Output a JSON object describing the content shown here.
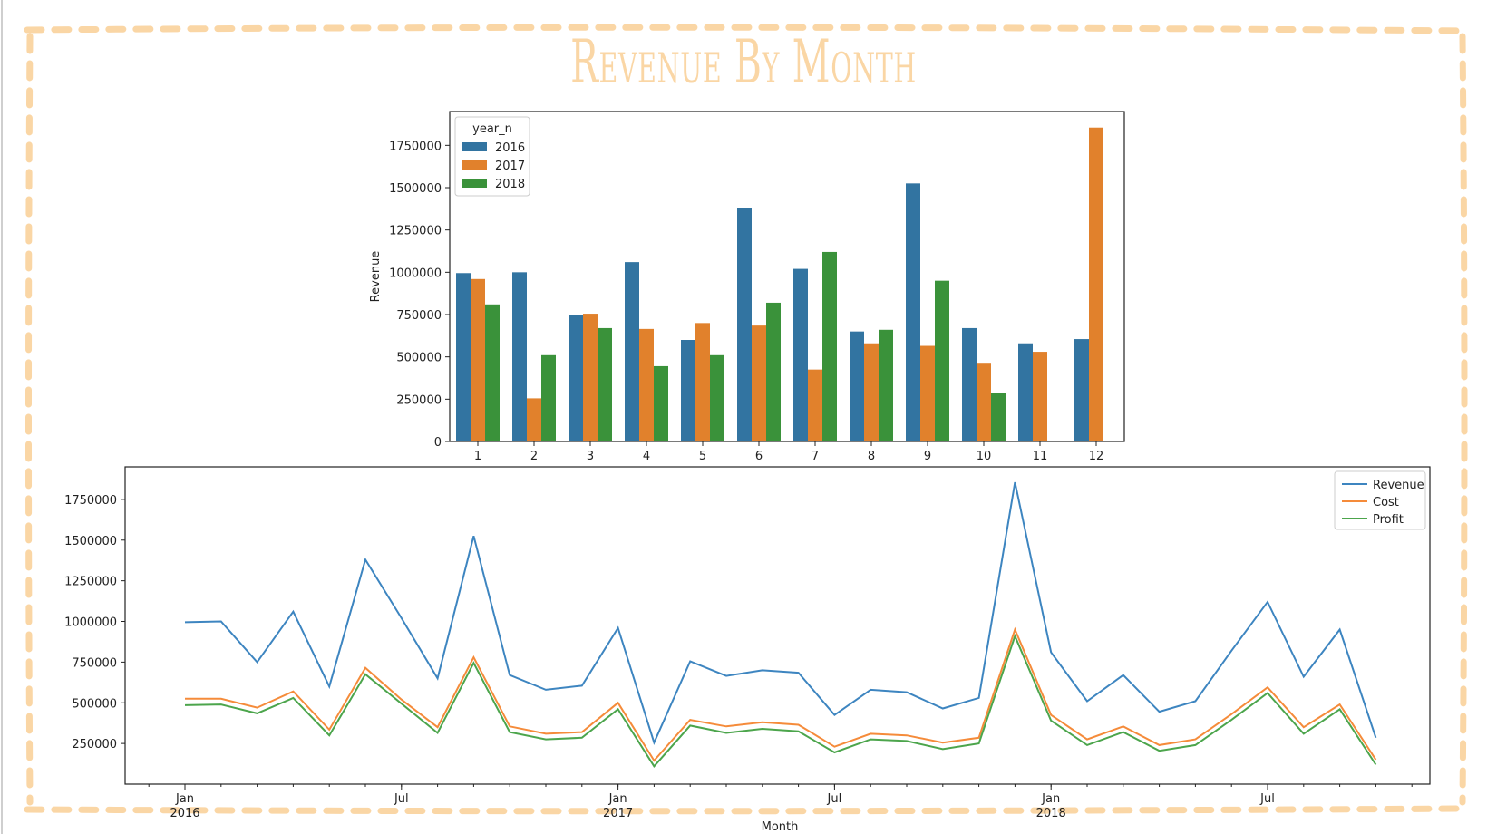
{
  "title": "Revenue By Month",
  "colors": {
    "frame": "#fad6a5",
    "s2016": "#3274a1",
    "s2017": "#e1812c",
    "s2018": "#3a923a",
    "revenue": "#3d85c0",
    "cost": "#f58b3a",
    "profit": "#4ca54c"
  },
  "chart_data": [
    {
      "type": "bar",
      "title": "",
      "xlabel": "",
      "ylabel": "Revenue",
      "ylim": [
        0,
        1950000
      ],
      "yticks": [
        "0",
        "250000",
        "500000",
        "750000",
        "1000000",
        "1250000",
        "1500000",
        "1750000"
      ],
      "categories": [
        "1",
        "2",
        "3",
        "4",
        "5",
        "6",
        "7",
        "8",
        "9",
        "10",
        "11",
        "12"
      ],
      "legend": {
        "title": "year_n",
        "position": "upper left"
      },
      "series": [
        {
          "name": "2016",
          "values": [
            995000,
            1000000,
            750000,
            1060000,
            600000,
            1380000,
            1020000,
            650000,
            1525000,
            670000,
            580000,
            605000
          ]
        },
        {
          "name": "2017",
          "values": [
            960000,
            255000,
            755000,
            665000,
            700000,
            685000,
            425000,
            580000,
            565000,
            465000,
            530000,
            1855000
          ]
        },
        {
          "name": "2018",
          "values": [
            810000,
            510000,
            670000,
            445000,
            510000,
            820000,
            1120000,
            660000,
            950000,
            285000,
            null,
            null
          ]
        }
      ]
    },
    {
      "type": "line",
      "title": "",
      "xlabel": "Month",
      "ylabel": "",
      "ylim": [
        0,
        1950000
      ],
      "yticks": [
        "250000",
        "500000",
        "750000",
        "1000000",
        "1250000",
        "1500000",
        "1750000"
      ],
      "x_start": "2016-01",
      "x": [
        "2016-01",
        "2016-02",
        "2016-03",
        "2016-04",
        "2016-05",
        "2016-06",
        "2016-07",
        "2016-08",
        "2016-09",
        "2016-10",
        "2016-11",
        "2016-12",
        "2017-01",
        "2017-02",
        "2017-03",
        "2017-04",
        "2017-05",
        "2017-06",
        "2017-07",
        "2017-08",
        "2017-09",
        "2017-10",
        "2017-11",
        "2017-12",
        "2018-01",
        "2018-02",
        "2018-03",
        "2018-04",
        "2018-05",
        "2018-06",
        "2018-07",
        "2018-08",
        "2018-09",
        "2018-10"
      ],
      "xticks": [
        {
          "month": "Jan",
          "year": "2016",
          "x": "2016-01"
        },
        {
          "month": "Jul",
          "year": "",
          "x": "2016-07"
        },
        {
          "month": "Jan",
          "year": "2017",
          "x": "2017-01"
        },
        {
          "month": "Jul",
          "year": "",
          "x": "2017-07"
        },
        {
          "month": "Jan",
          "year": "2018",
          "x": "2018-01"
        },
        {
          "month": "Jul",
          "year": "",
          "x": "2018-07"
        }
      ],
      "legend": {
        "position": "upper right"
      },
      "series": [
        {
          "name": "Revenue",
          "values": [
            995000,
            1000000,
            750000,
            1060000,
            600000,
            1380000,
            1020000,
            650000,
            1525000,
            670000,
            580000,
            605000,
            960000,
            255000,
            755000,
            665000,
            700000,
            685000,
            425000,
            580000,
            565000,
            465000,
            530000,
            1855000,
            810000,
            510000,
            670000,
            445000,
            510000,
            820000,
            1120000,
            660000,
            950000,
            285000
          ]
        },
        {
          "name": "Cost",
          "values": [
            525000,
            525000,
            470000,
            570000,
            335000,
            715000,
            520000,
            350000,
            780000,
            355000,
            310000,
            320000,
            500000,
            145000,
            395000,
            355000,
            380000,
            365000,
            230000,
            310000,
            300000,
            255000,
            285000,
            950000,
            425000,
            275000,
            355000,
            240000,
            275000,
            430000,
            595000,
            350000,
            490000,
            150000
          ]
        },
        {
          "name": "Profit",
          "values": [
            485000,
            490000,
            435000,
            530000,
            300000,
            675000,
            495000,
            315000,
            745000,
            320000,
            275000,
            285000,
            460000,
            110000,
            360000,
            315000,
            340000,
            325000,
            195000,
            275000,
            265000,
            215000,
            250000,
            910000,
            390000,
            240000,
            320000,
            205000,
            240000,
            395000,
            560000,
            310000,
            460000,
            120000
          ]
        }
      ]
    }
  ]
}
